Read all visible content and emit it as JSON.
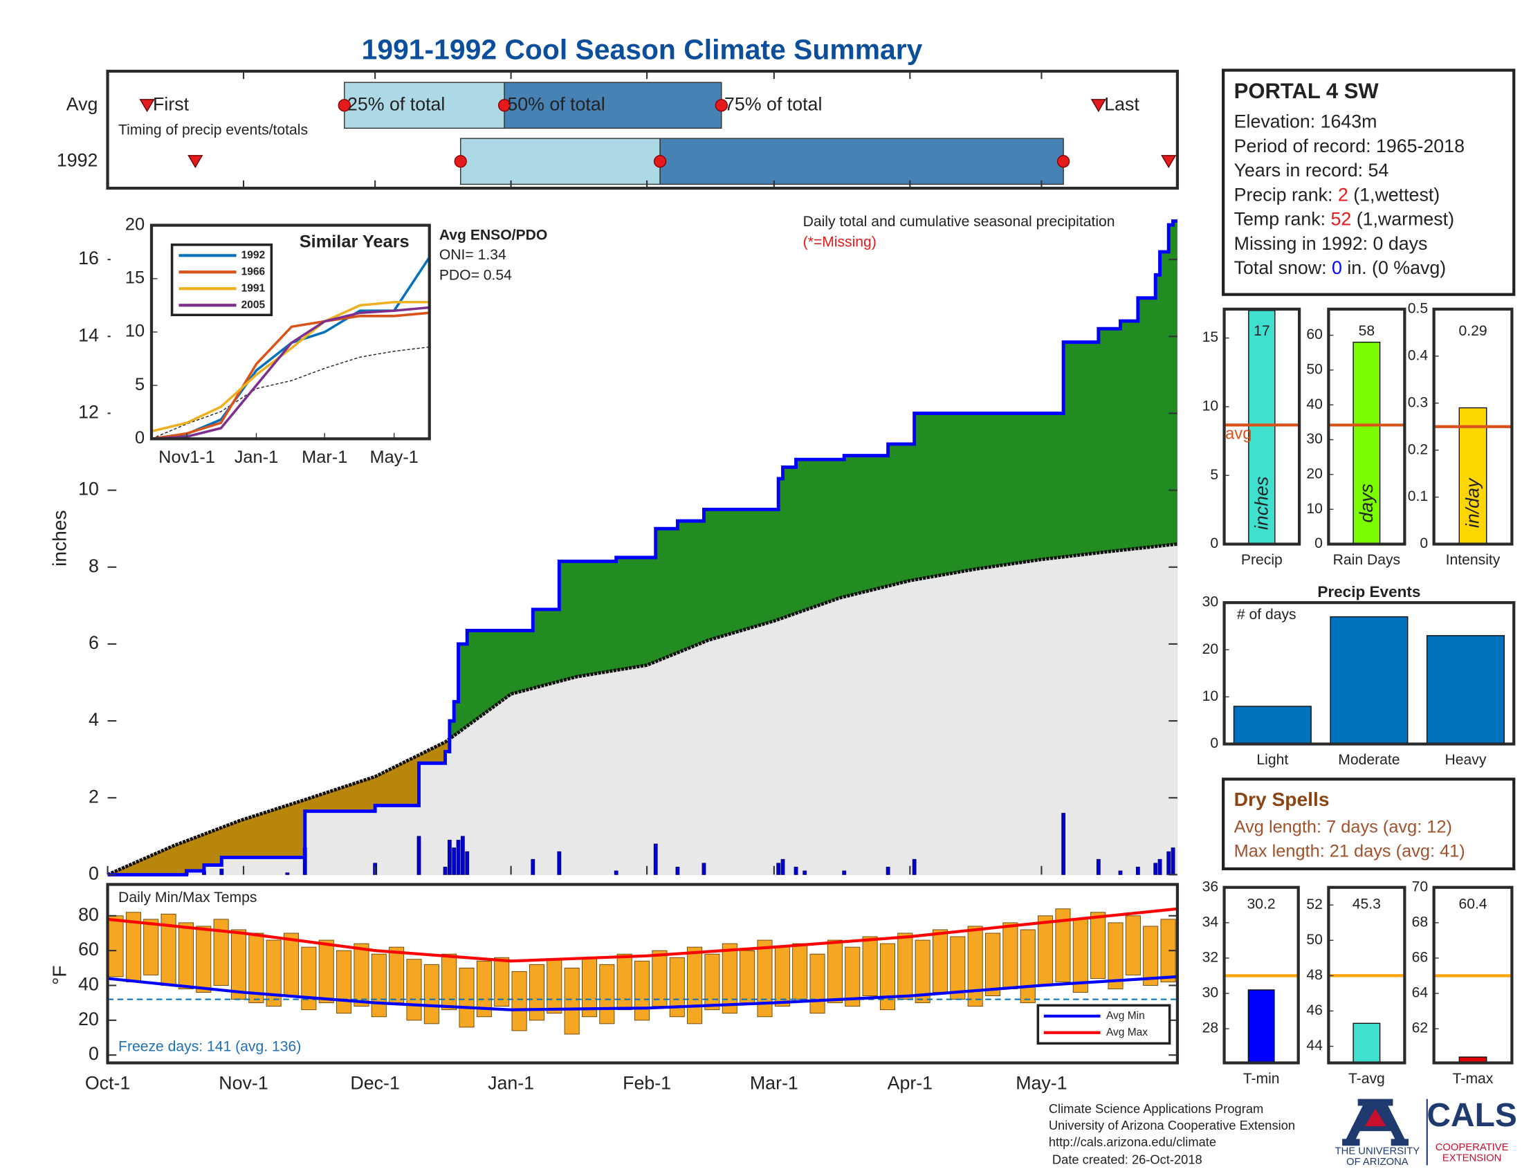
{
  "title": "1991-1992 Cool Season Climate Summary",
  "chart_data": [
    {
      "type": "timing",
      "caption": "Timing of precip events/totals",
      "markers": [
        "First",
        "25% of total",
        "50% of total",
        "75% of total",
        "Last"
      ],
      "series": [
        {
          "name": "Avg",
          "values": [
            9,
            54,
            90.5,
            140,
            226
          ]
        },
        {
          "name": "1992",
          "values": [
            20,
            80.5,
            126,
            218,
            242
          ]
        }
      ],
      "colors": [
        "#add8e6",
        "#4682b4"
      ],
      "marker_color": "#e41a1c",
      "xlim": [
        0,
        244
      ]
    },
    {
      "type": "area",
      "ylabel": "inches",
      "annotation": "Daily total and cumulative seasonal precipitation",
      "missing_note": "(*=Missing)",
      "enso": {
        "title": "Avg ENSO/PDO",
        "lines": [
          "ONI= 1.34",
          "PDO= 0.54"
        ]
      },
      "xlim": [
        0,
        244
      ],
      "xticks": [
        {
          "value": 0,
          "label": "Oct-1"
        },
        {
          "value": 31,
          "label": "Nov-1"
        },
        {
          "value": 61,
          "label": "Dec-1"
        },
        {
          "value": 92,
          "label": "Jan-1"
        },
        {
          "value": 123,
          "label": "Feb-1"
        },
        {
          "value": 152,
          "label": "Mar-1"
        },
        {
          "value": 183,
          "label": "Apr-1"
        },
        {
          "value": 213,
          "label": "May-1"
        }
      ],
      "ylim": [
        0,
        17.5
      ],
      "yticks": [
        0,
        2,
        4,
        6,
        8,
        10,
        12,
        14,
        16
      ],
      "cumulative": {
        "color": "#0000ff",
        "x": [
          0,
          18,
          18,
          22,
          22,
          26,
          26,
          45,
          45,
          61,
          61,
          71,
          71,
          77,
          77,
          78,
          78,
          79,
          79,
          80,
          80,
          82,
          82,
          97,
          97,
          103,
          103,
          116,
          116,
          125,
          125,
          130,
          130,
          136,
          136,
          153,
          153,
          154,
          154,
          157,
          157,
          168,
          168,
          178,
          178,
          184,
          184,
          218,
          218,
          226,
          226,
          231,
          231,
          235,
          235,
          239,
          239,
          240,
          240,
          242,
          242,
          243,
          243,
          244
        ],
        "values": [
          0,
          0,
          0.1,
          0.1,
          0.25,
          0.25,
          0.45,
          0.45,
          1.65,
          1.65,
          1.8,
          1.8,
          2.9,
          2.9,
          3.2,
          3.2,
          4.0,
          4.0,
          4.5,
          4.5,
          6.0,
          6.0,
          6.35,
          6.35,
          6.9,
          6.9,
          8.15,
          8.15,
          8.25,
          8.25,
          9.0,
          9.0,
          9.2,
          9.2,
          9.5,
          9.5,
          10.3,
          10.3,
          10.6,
          10.6,
          10.8,
          10.8,
          10.9,
          10.9,
          11.2,
          11.2,
          12.0,
          12.0,
          13.85,
          13.85,
          14.2,
          14.2,
          14.4,
          14.4,
          15.0,
          15.0,
          15.6,
          15.6,
          16.2,
          16.2,
          16.9,
          16.9,
          17.0,
          17.0
        ]
      },
      "average": {
        "color": "#111111",
        "x": [
          0,
          15,
          30,
          45,
          61,
          77,
          92,
          107,
          123,
          137,
          152,
          167,
          183,
          198,
          213,
          228,
          244
        ],
        "values": [
          0,
          0.75,
          1.4,
          1.95,
          2.55,
          3.45,
          4.7,
          5.15,
          5.45,
          6.1,
          6.6,
          7.2,
          7.65,
          7.95,
          8.2,
          8.4,
          8.6
        ]
      },
      "daily": {
        "color": "#0000cd",
        "x": [
          18,
          22,
          26,
          41,
          45,
          61,
          71,
          77,
          78,
          79,
          80,
          81,
          82,
          97,
          103,
          116,
          125,
          130,
          136,
          153,
          154,
          157,
          159,
          168,
          178,
          184,
          218,
          226,
          231,
          235,
          239,
          240,
          242,
          243
        ],
        "values": [
          0.05,
          0.1,
          0.15,
          0.05,
          0.7,
          0.3,
          1.0,
          0.2,
          0.9,
          0.7,
          0.9,
          1.0,
          0.6,
          0.4,
          0.6,
          0.1,
          0.8,
          0.2,
          0.3,
          0.3,
          0.4,
          0.2,
          0.1,
          0.1,
          0.2,
          0.4,
          1.6,
          0.4,
          0.1,
          0.2,
          0.3,
          0.4,
          0.6,
          0.7
        ]
      },
      "above_color": "#228b22",
      "below_color": "#b8860b",
      "base_color": "#e8e8e8"
    },
    {
      "type": "line",
      "title": "Similar Years",
      "xlim": [
        0,
        244
      ],
      "xticks": [
        {
          "value": 31,
          "label": "Nov1-1"
        },
        {
          "value": 92,
          "label": "Jan-1"
        },
        {
          "value": 152,
          "label": "Mar-1"
        },
        {
          "value": 213,
          "label": "May-1"
        }
      ],
      "ylim": [
        0,
        20
      ],
      "yticks": [
        0,
        5,
        10,
        15,
        20
      ],
      "x": [
        0,
        31,
        61,
        92,
        123,
        152,
        183,
        213,
        244
      ],
      "series": [
        {
          "name": "1992",
          "color": "#0072bd",
          "values": [
            0,
            0.45,
            1.8,
            6.4,
            9.0,
            10.0,
            12.0,
            12.0,
            17.0
          ]
        },
        {
          "name": "1966",
          "color": "#d95319",
          "values": [
            0,
            0.5,
            1.5,
            7,
            10.5,
            11,
            11.5,
            11.5,
            11.8
          ]
        },
        {
          "name": "1991",
          "color": "#edb120",
          "values": [
            0.7,
            1.5,
            3,
            6,
            8.5,
            11,
            12.5,
            12.8,
            12.8
          ]
        },
        {
          "name": "2005",
          "color": "#7e2f8e",
          "values": [
            0,
            0.2,
            1,
            5,
            9,
            11,
            11.8,
            12,
            12.3
          ]
        }
      ],
      "average": {
        "color": "#222222",
        "values": [
          0,
          1.4,
          2.55,
          4.7,
          5.45,
          6.6,
          7.65,
          8.2,
          8.6
        ]
      }
    },
    {
      "type": "range",
      "title": "Daily Min/Max Temps",
      "ylabel": "°F",
      "annotation": "Freeze days: 141 (avg. 136)",
      "xlim": [
        0,
        244
      ],
      "ylim": [
        -4.5,
        98
      ],
      "yticks": [
        0,
        20,
        40,
        60,
        80
      ],
      "freeze_line": 32,
      "freeze_color": "#0072bd",
      "bar_color": "#f5a623",
      "x": [
        0,
        4,
        8,
        12,
        16,
        20,
        24,
        28,
        32,
        36,
        40,
        44,
        48,
        52,
        56,
        60,
        64,
        68,
        72,
        76,
        80,
        84,
        88,
        92,
        96,
        100,
        104,
        108,
        112,
        116,
        120,
        124,
        128,
        132,
        136,
        140,
        144,
        148,
        152,
        156,
        160,
        164,
        168,
        172,
        176,
        180,
        184,
        188,
        192,
        196,
        200,
        204,
        208,
        212,
        216,
        220,
        224,
        228,
        232,
        236,
        240
      ],
      "max": [
        80,
        82,
        78,
        81,
        76,
        74,
        78,
        72,
        70,
        66,
        70,
        62,
        66,
        60,
        64,
        58,
        62,
        55,
        52,
        58,
        50,
        54,
        56,
        48,
        52,
        55,
        50,
        56,
        52,
        58,
        54,
        60,
        56,
        62,
        58,
        64,
        60,
        66,
        62,
        64,
        58,
        66,
        62,
        68,
        64,
        70,
        66,
        72,
        68,
        74,
        70,
        76,
        72,
        80,
        84,
        78,
        82,
        76,
        80,
        74,
        78
      ],
      "min": [
        45,
        42,
        46,
        40,
        38,
        36,
        40,
        32,
        30,
        28,
        34,
        26,
        30,
        24,
        28,
        22,
        30,
        20,
        18,
        26,
        16,
        22,
        28,
        14,
        20,
        24,
        12,
        22,
        18,
        26,
        20,
        28,
        22,
        18,
        26,
        24,
        30,
        22,
        28,
        32,
        24,
        30,
        28,
        34,
        26,
        32,
        30,
        36,
        32,
        28,
        34,
        38,
        30,
        40,
        42,
        36,
        44,
        38,
        46,
        40,
        42
      ],
      "average_series": [
        {
          "name": "Avg Min",
          "color": "#0000ff",
          "x": [
            0,
            31,
            61,
            92,
            123,
            152,
            183,
            213,
            244
          ],
          "values": [
            44,
            36,
            30,
            26,
            27,
            30,
            34,
            40,
            45
          ]
        },
        {
          "name": "Avg Max",
          "color": "#ff0000",
          "x": [
            0,
            31,
            61,
            92,
            123,
            152,
            183,
            213,
            244
          ],
          "values": [
            78,
            70,
            60,
            54,
            57,
            62,
            68,
            76,
            84
          ]
        }
      ]
    },
    {
      "type": "bar",
      "categories": [
        "Precip"
      ],
      "values": [
        17
      ],
      "color": "#40e0d0",
      "ylim": [
        0,
        17.1
      ],
      "yticks": [
        0,
        5,
        10,
        15
      ],
      "avg": 8.67,
      "avg_color": "#d95319",
      "avg_label": "avg",
      "unit_label": "inches"
    },
    {
      "type": "bar",
      "categories": [
        "Rain Days"
      ],
      "values": [
        58
      ],
      "color": "#7cfc00",
      "ylim": [
        0,
        67.5
      ],
      "yticks": [
        0,
        10,
        20,
        30,
        40,
        50,
        60
      ],
      "avg": 34.2,
      "avg_color": "#d95319",
      "unit_label": "days"
    },
    {
      "type": "bar",
      "categories": [
        "Intensity"
      ],
      "values": [
        0.29
      ],
      "color": "#ffd700",
      "ylim": [
        0,
        0.5
      ],
      "yticks": [
        0,
        0.1,
        0.2,
        0.3,
        0.4,
        0.5
      ],
      "avg": 0.25,
      "avg_color": "#d95319",
      "unit_label": "in/day"
    },
    {
      "type": "bar",
      "title": "Precip Events",
      "ylabel": "# of days",
      "categories": [
        "Light",
        "Moderate",
        "Heavy"
      ],
      "values": [
        8,
        27,
        23
      ],
      "color": "#0072bd",
      "ylim": [
        0,
        30
      ],
      "yticks": [
        0,
        10,
        20,
        30
      ]
    },
    {
      "type": "bar",
      "categories": [
        "T-min"
      ],
      "values": [
        30.2
      ],
      "color": "#0000ff",
      "ylim": [
        26.07,
        36
      ],
      "yticks": [
        28,
        30,
        32,
        34,
        36
      ],
      "avg": 31,
      "avg_color": "#ffa500"
    },
    {
      "type": "bar",
      "categories": [
        "T-avg"
      ],
      "values": [
        45.3
      ],
      "color": "#40e0d0",
      "ylim": [
        43.06,
        53
      ],
      "yticks": [
        44,
        46,
        48,
        50,
        52
      ],
      "avg": 48,
      "avg_color": "#ffa500"
    },
    {
      "type": "bar",
      "categories": [
        "T-max"
      ],
      "values": [
        60.4
      ],
      "color": "#e00000",
      "ylim": [
        60.07,
        70
      ],
      "yticks": [
        62,
        64,
        66,
        68,
        70
      ],
      "avg": 65,
      "avg_color": "#ffa500"
    }
  ],
  "station": {
    "title": "PORTAL 4 SW",
    "lines": [
      [
        {
          "text": "Elevation: 1643m"
        }
      ],
      [
        {
          "text": "Period of record: 1965-2018"
        }
      ],
      [
        {
          "text": "Years in record: 54"
        }
      ],
      [
        {
          "text": "Precip rank: "
        },
        {
          "text": "2",
          "color": "#e41a1c"
        },
        {
          "text": " (1,wettest)"
        }
      ],
      [
        {
          "text": "Temp rank: "
        },
        {
          "text": "52",
          "color": "#e41a1c"
        },
        {
          "text": " (1,warmest)"
        }
      ],
      [
        {
          "text": "Missing in 1992: 0 days"
        }
      ],
      [
        {
          "text": "Total snow: "
        },
        {
          "text": "0",
          "color": "#0000ff"
        },
        {
          "text": " in. (0 %avg)"
        }
      ]
    ]
  },
  "dry_spells": {
    "title": "Dry Spells",
    "lines": [
      "Avg length: 7 days (avg: 12)",
      "Max length: 21 days (avg: 41)"
    ]
  },
  "footer": {
    "lines": [
      "Climate Science Applications Program",
      "University of Arizona Cooperative Extension",
      "http://cals.arizona.edu/climate",
      " Date created: 26-Oct-2018"
    ]
  },
  "logos": {
    "ua": [
      "THE UNIVERSITY",
      "OF ARIZONA"
    ],
    "cals": "CALS",
    "cals_sub": [
      "COOPERATIVE",
      "EXTENSION"
    ]
  }
}
